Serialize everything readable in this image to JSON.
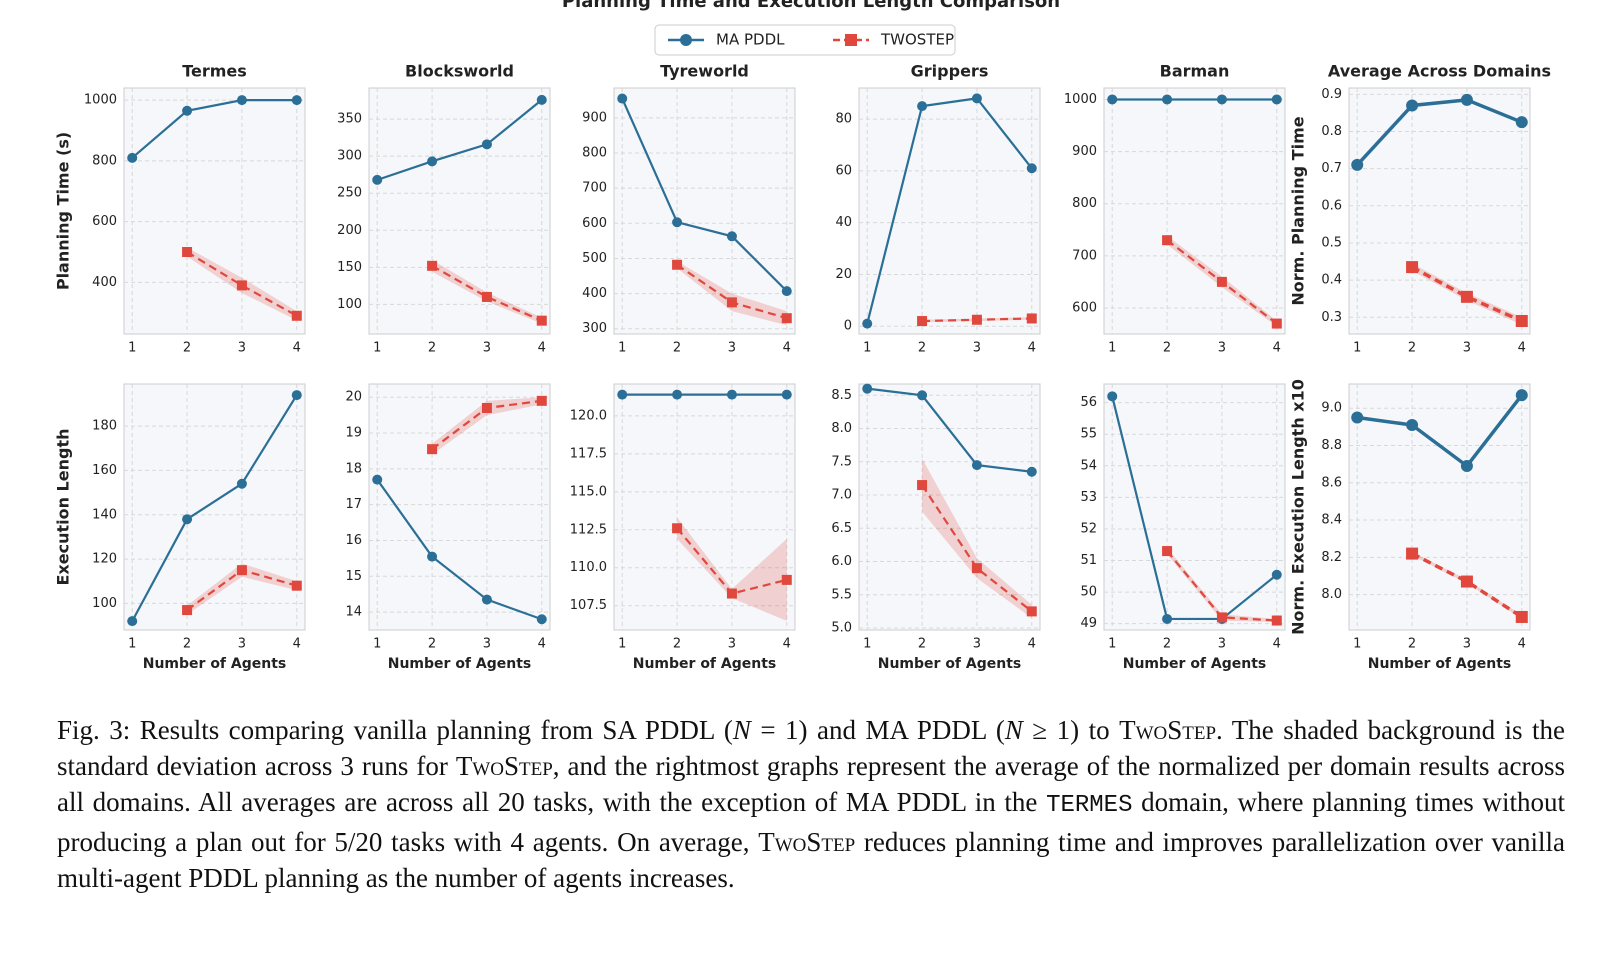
{
  "figure_title": "Planning Time and Execution Length Comparison",
  "chart_data": [
    {
      "type": "line",
      "title": "Termes",
      "y_label": "Planning Time (s)",
      "x": [
        1,
        2,
        3,
        4
      ],
      "xlim": [
        0.85,
        4.15
      ],
      "xticks": [
        1,
        2,
        3,
        4
      ],
      "ylim": [
        230,
        1040
      ],
      "yticks": [
        400,
        600,
        800,
        1000
      ],
      "grid": true,
      "series": [
        {
          "name": "MA PDDL",
          "color": "#2b6f96",
          "marker": "circle",
          "values": [
            810,
            965,
            1000,
            1000
          ]
        },
        {
          "name": "TWOSTEP",
          "color": "#e0483d",
          "marker": "square",
          "dash": true,
          "values": [
            null,
            500,
            390,
            290
          ],
          "std": [
            null,
            15,
            25,
            15
          ]
        }
      ]
    },
    {
      "type": "line",
      "title": "Blocksworld",
      "x": [
        1,
        2,
        3,
        4
      ],
      "xlim": [
        0.85,
        4.15
      ],
      "xticks": [
        1,
        2,
        3,
        4
      ],
      "ylim": [
        60,
        392
      ],
      "yticks": [
        100,
        150,
        200,
        250,
        300,
        350
      ],
      "grid": true,
      "series": [
        {
          "name": "MA PDDL",
          "color": "#2b6f96",
          "marker": "circle",
          "values": [
            268,
            293,
            316,
            376
          ]
        },
        {
          "name": "TWOSTEP",
          "color": "#e0483d",
          "marker": "square",
          "dash": true,
          "values": [
            null,
            152,
            110,
            78
          ],
          "std": [
            null,
            8,
            6,
            4
          ]
        }
      ]
    },
    {
      "type": "line",
      "title": "Tyreworld",
      "x": [
        1,
        2,
        3,
        4
      ],
      "xlim": [
        0.85,
        4.15
      ],
      "xticks": [
        1,
        2,
        3,
        4
      ],
      "ylim": [
        285,
        985
      ],
      "yticks": [
        300,
        400,
        500,
        600,
        700,
        800,
        900
      ],
      "grid": true,
      "series": [
        {
          "name": "MA PDDL",
          "color": "#2b6f96",
          "marker": "circle",
          "values": [
            955,
            603,
            563,
            407
          ]
        },
        {
          "name": "TWOSTEP",
          "color": "#e0483d",
          "marker": "square",
          "dash": true,
          "values": [
            null,
            482,
            375,
            330
          ],
          "std": [
            null,
            10,
            25,
            20
          ]
        }
      ]
    },
    {
      "type": "line",
      "title": "Grippers",
      "x": [
        1,
        2,
        3,
        4
      ],
      "xlim": [
        0.85,
        4.15
      ],
      "xticks": [
        1,
        2,
        3,
        4
      ],
      "ylim": [
        -3,
        92
      ],
      "yticks": [
        0,
        20,
        40,
        60,
        80
      ],
      "grid": true,
      "series": [
        {
          "name": "MA PDDL",
          "color": "#2b6f96",
          "marker": "circle",
          "values": [
            1,
            85,
            88,
            61
          ]
        },
        {
          "name": "TWOSTEP",
          "color": "#e0483d",
          "marker": "square",
          "dash": true,
          "values": [
            null,
            2,
            2.5,
            3
          ],
          "std": [
            null,
            0.5,
            0.5,
            0.5
          ]
        }
      ]
    },
    {
      "type": "line",
      "title": "Barman",
      "x": [
        1,
        2,
        3,
        4
      ],
      "xlim": [
        0.85,
        4.15
      ],
      "xticks": [
        1,
        2,
        3,
        4
      ],
      "ylim": [
        550,
        1022
      ],
      "yticks": [
        600,
        700,
        800,
        900,
        1000
      ],
      "grid": true,
      "series": [
        {
          "name": "MA PDDL",
          "color": "#2b6f96",
          "marker": "circle",
          "values": [
            1000,
            1000,
            1000,
            1000
          ]
        },
        {
          "name": "TWOSTEP",
          "color": "#e0483d",
          "marker": "square",
          "dash": true,
          "values": [
            null,
            730,
            650,
            570
          ],
          "std": [
            null,
            8,
            10,
            5
          ]
        }
      ]
    },
    {
      "type": "line",
      "title": "Average Across Domains",
      "y_label": "Norm. Planning Time",
      "x": [
        1,
        2,
        3,
        4
      ],
      "xlim": [
        0.85,
        4.15
      ],
      "xticks": [
        1,
        2,
        3,
        4
      ],
      "ylim": [
        0.255,
        0.917
      ],
      "yticks": [
        0.3,
        0.4,
        0.5,
        0.6,
        0.7,
        0.8,
        0.9
      ],
      "grid": true,
      "series": [
        {
          "name": "MA PDDL",
          "color": "#2b6f96",
          "marker": "circle",
          "values": [
            0.71,
            0.87,
            0.885,
            0.825
          ]
        },
        {
          "name": "TWOSTEP",
          "color": "#e0483d",
          "marker": "square",
          "dash": true,
          "values": [
            null,
            0.435,
            0.355,
            0.29
          ],
          "std": [
            null,
            0.01,
            0.01,
            0.01
          ]
        }
      ]
    },
    {
      "type": "line",
      "y_label": "Execution Length",
      "x_label": "Number of Agents",
      "x": [
        1,
        2,
        3,
        4
      ],
      "xlim": [
        0.85,
        4.15
      ],
      "xticks": [
        1,
        2,
        3,
        4
      ],
      "ylim": [
        88,
        199
      ],
      "yticks": [
        100,
        120,
        140,
        160,
        180
      ],
      "grid": true,
      "series": [
        {
          "name": "MA PDDL",
          "color": "#2b6f96",
          "marker": "circle",
          "values": [
            92,
            138,
            154,
            194
          ]
        },
        {
          "name": "TWOSTEP",
          "color": "#e0483d",
          "marker": "square",
          "dash": true,
          "values": [
            null,
            97,
            115,
            108
          ],
          "std": [
            null,
            2,
            3,
            2
          ]
        }
      ]
    },
    {
      "type": "line",
      "x_label": "Number of Agents",
      "x": [
        1,
        2,
        3,
        4
      ],
      "xlim": [
        0.85,
        4.15
      ],
      "xticks": [
        1,
        2,
        3,
        4
      ],
      "ylim": [
        13.5,
        20.37
      ],
      "yticks": [
        14,
        15,
        16,
        17,
        18,
        19,
        20
      ],
      "grid": true,
      "series": [
        {
          "name": "MA PDDL",
          "color": "#2b6f96",
          "marker": "circle",
          "values": [
            17.7,
            15.55,
            14.35,
            13.8
          ]
        },
        {
          "name": "TWOSTEP",
          "color": "#e0483d",
          "marker": "square",
          "dash": true,
          "values": [
            null,
            18.55,
            19.7,
            19.9
          ],
          "std": [
            null,
            0.15,
            0.2,
            0.1
          ]
        }
      ]
    },
    {
      "type": "line",
      "x_label": "Number of Agents",
      "x": [
        1,
        2,
        3,
        4
      ],
      "xlim": [
        0.85,
        4.15
      ],
      "xticks": [
        1,
        2,
        3,
        4
      ],
      "ylim": [
        105.9,
        122.1
      ],
      "yticks": [
        107.5,
        {
          "value": 110,
          "label": "110.0"
        },
        112.5,
        {
          "value": 115,
          "label": "115.0"
        },
        117.5,
        {
          "value": 120,
          "label": "120.0"
        }
      ],
      "grid": true,
      "series": [
        {
          "name": "MA PDDL",
          "color": "#2b6f96",
          "marker": "circle",
          "values": [
            121.4,
            121.4,
            121.4,
            121.4
          ]
        },
        {
          "name": "TWOSTEP",
          "color": "#e0483d",
          "marker": "square",
          "dash": true,
          "values": [
            null,
            112.6,
            108.3,
            109.2
          ],
          "std": [
            null,
            0.7,
            0.3,
            2.7
          ]
        }
      ]
    },
    {
      "type": "line",
      "x_label": "Number of Agents",
      "x": [
        1,
        2,
        3,
        4
      ],
      "xlim": [
        0.85,
        4.15
      ],
      "xticks": [
        1,
        2,
        3,
        4
      ],
      "ylim": [
        4.97,
        8.67
      ],
      "yticks": [
        {
          "value": 5,
          "label": "5.0"
        },
        5.5,
        {
          "value": 6,
          "label": "6.0"
        },
        6.5,
        {
          "value": 7,
          "label": "7.0"
        },
        7.5,
        {
          "value": 8,
          "label": "8.0"
        },
        8.5
      ],
      "grid": true,
      "series": [
        {
          "name": "MA PDDL",
          "color": "#2b6f96",
          "marker": "circle",
          "values": [
            8.6,
            8.5,
            7.45,
            7.35
          ]
        },
        {
          "name": "TWOSTEP",
          "color": "#e0483d",
          "marker": "square",
          "dash": true,
          "values": [
            null,
            7.15,
            5.9,
            5.25
          ],
          "std": [
            null,
            0.4,
            0.15,
            0.1
          ]
        }
      ]
    },
    {
      "type": "line",
      "x_label": "Number of Agents",
      "x": [
        1,
        2,
        3,
        4
      ],
      "xlim": [
        0.85,
        4.15
      ],
      "xticks": [
        1,
        2,
        3,
        4
      ],
      "ylim": [
        48.8,
        56.59
      ],
      "yticks": [
        49,
        50,
        51,
        52,
        53,
        54,
        55,
        56
      ],
      "grid": true,
      "series": [
        {
          "name": "MA PDDL",
          "color": "#2b6f96",
          "marker": "circle",
          "values": [
            56.2,
            49.15,
            49.15,
            50.55
          ]
        },
        {
          "name": "TWOSTEP",
          "color": "#e0483d",
          "marker": "square",
          "dash": true,
          "values": [
            null,
            51.3,
            49.2,
            49.1
          ],
          "std": [
            null,
            0.1,
            0.1,
            0.05
          ]
        }
      ]
    },
    {
      "type": "line",
      "y_label": "Norm. Execution Length x10",
      "x_label": "Number of Agents",
      "x": [
        1,
        2,
        3,
        4
      ],
      "xlim": [
        0.85,
        4.15
      ],
      "xticks": [
        1,
        2,
        3,
        4
      ],
      "ylim": [
        7.81,
        9.13
      ],
      "yticks": [
        {
          "value": 8,
          "label": "8.0"
        },
        8.2,
        8.4,
        8.6,
        8.8,
        {
          "value": 9,
          "label": "9.0"
        }
      ],
      "grid": true,
      "series": [
        {
          "name": "MA PDDL",
          "color": "#2b6f96",
          "marker": "circle",
          "values": [
            8.95,
            8.91,
            8.69,
            9.07
          ]
        },
        {
          "name": "TWOSTEP",
          "color": "#e0483d",
          "marker": "square",
          "dash": true,
          "values": [
            null,
            8.22,
            8.07,
            7.88
          ],
          "std": [
            null,
            0.01,
            0.01,
            0.01
          ]
        }
      ]
    }
  ],
  "caption": [
    {
      "text": "Fig. 3: Results comparing vanilla planning from SA PDDL ("
    },
    {
      "text": "N",
      "style": "i"
    },
    {
      "text": " = 1) and MA PDDL ("
    },
    {
      "text": "N",
      "style": "i"
    },
    {
      "text": " ≥ 1) to "
    },
    {
      "text": "TwoStep",
      "style": "sc"
    },
    {
      "text": ". The shaded background is the standard deviation across 3 runs for "
    },
    {
      "text": "TwoStep",
      "style": "sc"
    },
    {
      "text": ", and the rightmost graphs represent the average of the normalized per domain results across all domains. All averages are across all 20 tasks, with the exception of MA PDDL in the "
    },
    {
      "text": "TERMES",
      "style": "mono"
    },
    {
      "text": " domain, where planning times without producing a plan out for 5/20 tasks with 4 agents. On average, "
    },
    {
      "text": "TwoStep",
      "style": "sc"
    },
    {
      "text": " reduces planning time and improves parallelization over vanilla multi-agent PDDL planning as the number of agents increases."
    }
  ]
}
